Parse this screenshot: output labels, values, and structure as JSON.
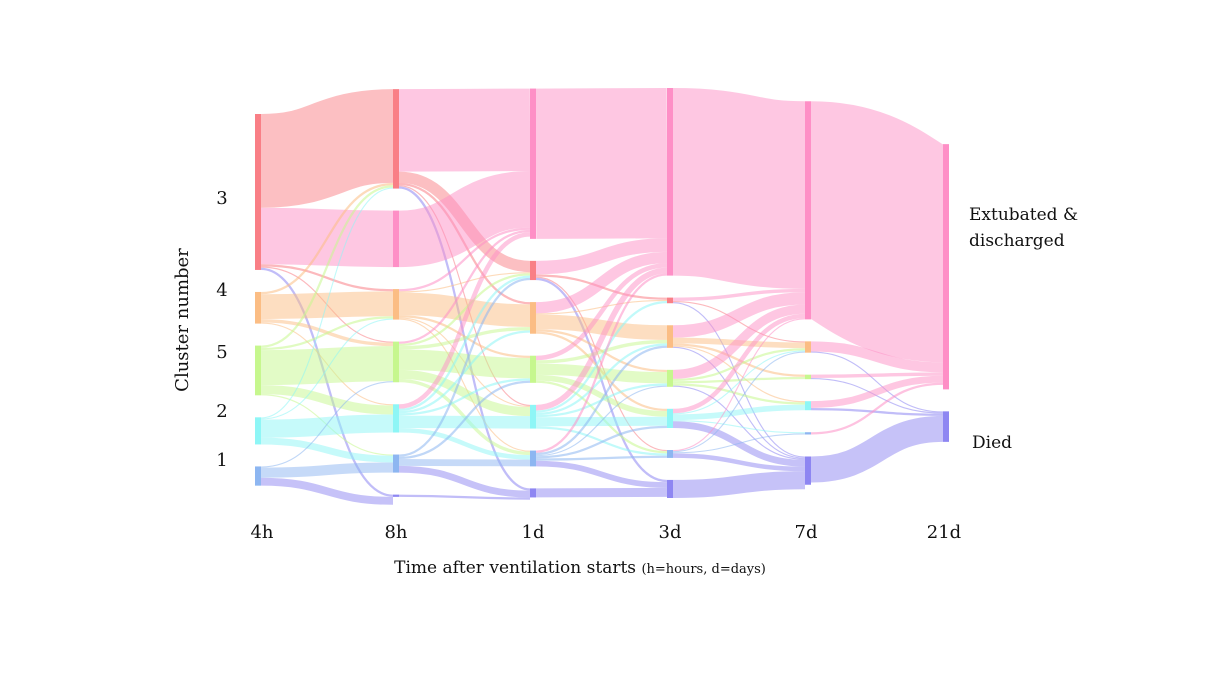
{
  "chart_data": {
    "type": "sankey",
    "xlabel_main": "Time after ventilation starts",
    "xlabel_note": "(h=hours, d=days)",
    "ylabel": "Cluster number",
    "time_points": [
      "4h",
      "8h",
      "1d",
      "3d",
      "7d",
      "21d"
    ],
    "cluster_labels": [
      "3",
      "4",
      "5",
      "2",
      "1"
    ],
    "outcomes": [
      {
        "line1": "Extubated &",
        "line2": "discharged"
      },
      {
        "line1": "Died",
        "line2": ""
      }
    ],
    "colors": {
      "c3": "#f97f86",
      "c4": "#fbbd84",
      "c5": "#c6f78e",
      "c2": "#8ef6f6",
      "c1": "#8db6f1",
      "discharged": "#fe8fc6",
      "died": "#8e86f2"
    },
    "nodes": [
      [
        {
          "id": "c3",
          "value": 138
        },
        {
          "id": "c4",
          "value": 28
        },
        {
          "id": "c5",
          "value": 44
        },
        {
          "id": "c2",
          "value": 24
        },
        {
          "id": "c1",
          "value": 17
        }
      ],
      [
        {
          "id": "c3",
          "value": 88
        },
        {
          "id": "discharged",
          "value": 50
        },
        {
          "id": "c4",
          "value": 27
        },
        {
          "id": "c5",
          "value": 36
        },
        {
          "id": "c2",
          "value": 25
        },
        {
          "id": "c1",
          "value": 16
        },
        {
          "id": "died",
          "value": 2
        }
      ],
      [
        {
          "id": "discharged",
          "value": 133
        },
        {
          "id": "c3",
          "value": 17
        },
        {
          "id": "c4",
          "value": 28
        },
        {
          "id": "c5",
          "value": 24
        },
        {
          "id": "c2",
          "value": 21
        },
        {
          "id": "c1",
          "value": 14
        },
        {
          "id": "died",
          "value": 8
        }
      ],
      [
        {
          "id": "discharged",
          "value": 166
        },
        {
          "id": "c3",
          "value": 5
        },
        {
          "id": "c4",
          "value": 20
        },
        {
          "id": "c5",
          "value": 15
        },
        {
          "id": "c2",
          "value": 17
        },
        {
          "id": "c1",
          "value": 7
        },
        {
          "id": "died",
          "value": 16
        }
      ],
      [
        {
          "id": "discharged",
          "value": 193
        },
        {
          "id": "c4",
          "value": 10
        },
        {
          "id": "c5",
          "value": 4
        },
        {
          "id": "c2",
          "value": 8
        },
        {
          "id": "c1",
          "value": 2
        },
        {
          "id": "died",
          "value": 25
        }
      ],
      [
        {
          "id": "discharged",
          "value": 217
        },
        {
          "id": "died",
          "value": 27
        }
      ]
    ],
    "links": [
      [
        {
          "s": "c3",
          "t": "c3",
          "v": 83
        },
        {
          "s": "c3",
          "t": "discharged",
          "v": 50
        },
        {
          "s": "c3",
          "t": "c4",
          "v": 2
        },
        {
          "s": "c3",
          "t": "c5",
          "v": 1
        },
        {
          "s": "c3",
          "t": "died",
          "v": 2
        },
        {
          "s": "c4",
          "t": "c3",
          "v": 2
        },
        {
          "s": "c4",
          "t": "c4",
          "v": 22
        },
        {
          "s": "c4",
          "t": "c5",
          "v": 3
        },
        {
          "s": "c4",
          "t": "c2",
          "v": 1
        },
        {
          "s": "c5",
          "t": "c3",
          "v": 2
        },
        {
          "s": "c5",
          "t": "c4",
          "v": 2
        },
        {
          "s": "c5",
          "t": "c5",
          "v": 31
        },
        {
          "s": "c5",
          "t": "c2",
          "v": 8
        },
        {
          "s": "c5",
          "t": "c1",
          "v": 1
        },
        {
          "s": "c2",
          "t": "c3",
          "v": 1
        },
        {
          "s": "c2",
          "t": "c4",
          "v": 1
        },
        {
          "s": "c2",
          "t": "c2",
          "v": 16
        },
        {
          "s": "c2",
          "t": "c1",
          "v": 6
        },
        {
          "s": "c1",
          "t": "c5",
          "v": 1
        },
        {
          "s": "c1",
          "t": "c1",
          "v": 9
        },
        {
          "s": "c1",
          "t": "died",
          "v": 7
        }
      ],
      [
        {
          "s": "c3",
          "t": "discharged",
          "v": 73
        },
        {
          "s": "c3",
          "t": "c3",
          "v": 10
        },
        {
          "s": "c3",
          "t": "c4",
          "v": 2
        },
        {
          "s": "c3",
          "t": "c2",
          "v": 1
        },
        {
          "s": "c3",
          "t": "died",
          "v": 2
        },
        {
          "s": "discharged",
          "t": "discharged",
          "v": 50
        },
        {
          "s": "c4",
          "t": "discharged",
          "v": 2
        },
        {
          "s": "c4",
          "t": "c3",
          "v": 1
        },
        {
          "s": "c4",
          "t": "c4",
          "v": 20
        },
        {
          "s": "c4",
          "t": "c5",
          "v": 2
        },
        {
          "s": "c4",
          "t": "c2",
          "v": 1
        },
        {
          "s": "c4",
          "t": "c1",
          "v": 1
        },
        {
          "s": "c5",
          "t": "discharged",
          "v": 2
        },
        {
          "s": "c5",
          "t": "c3",
          "v": 2
        },
        {
          "s": "c5",
          "t": "c4",
          "v": 3
        },
        {
          "s": "c5",
          "t": "c5",
          "v": 18
        },
        {
          "s": "c5",
          "t": "c2",
          "v": 8
        },
        {
          "s": "c5",
          "t": "c1",
          "v": 3
        },
        {
          "s": "c2",
          "t": "discharged",
          "v": 4
        },
        {
          "s": "c2",
          "t": "c3",
          "v": 2
        },
        {
          "s": "c2",
          "t": "c4",
          "v": 2
        },
        {
          "s": "c2",
          "t": "c5",
          "v": 2
        },
        {
          "s": "c2",
          "t": "c2",
          "v": 11
        },
        {
          "s": "c2",
          "t": "c1",
          "v": 4
        },
        {
          "s": "c1",
          "t": "c3",
          "v": 2
        },
        {
          "s": "c1",
          "t": "c5",
          "v": 2
        },
        {
          "s": "c1",
          "t": "c1",
          "v": 6
        },
        {
          "s": "c1",
          "t": "died",
          "v": 6
        },
        {
          "s": "died",
          "t": "died",
          "v": 2
        }
      ],
      [
        {
          "s": "discharged",
          "t": "discharged",
          "v": 133
        },
        {
          "s": "c3",
          "t": "discharged",
          "v": 12
        },
        {
          "s": "c3",
          "t": "c3",
          "v": 2
        },
        {
          "s": "c3",
          "t": "c1",
          "v": 1
        },
        {
          "s": "c3",
          "t": "died",
          "v": 2
        },
        {
          "s": "c4",
          "t": "discharged",
          "v": 10
        },
        {
          "s": "c4",
          "t": "c3",
          "v": 1
        },
        {
          "s": "c4",
          "t": "c4",
          "v": 13
        },
        {
          "s": "c4",
          "t": "c5",
          "v": 2
        },
        {
          "s": "c4",
          "t": "c2",
          "v": 2
        },
        {
          "s": "c5",
          "t": "discharged",
          "v": 4
        },
        {
          "s": "c5",
          "t": "c4",
          "v": 3
        },
        {
          "s": "c5",
          "t": "c5",
          "v": 10
        },
        {
          "s": "c5",
          "t": "c2",
          "v": 5
        },
        {
          "s": "c5",
          "t": "c1",
          "v": 2
        },
        {
          "s": "c2",
          "t": "discharged",
          "v": 5
        },
        {
          "s": "c2",
          "t": "c3",
          "v": 2
        },
        {
          "s": "c2",
          "t": "c4",
          "v": 2
        },
        {
          "s": "c2",
          "t": "c5",
          "v": 2
        },
        {
          "s": "c2",
          "t": "c2",
          "v": 8
        },
        {
          "s": "c2",
          "t": "c1",
          "v": 2
        },
        {
          "s": "c1",
          "t": "discharged",
          "v": 2
        },
        {
          "s": "c1",
          "t": "c4",
          "v": 2
        },
        {
          "s": "c1",
          "t": "c5",
          "v": 1
        },
        {
          "s": "c1",
          "t": "c2",
          "v": 2
        },
        {
          "s": "c1",
          "t": "c1",
          "v": 2
        },
        {
          "s": "c1",
          "t": "died",
          "v": 5
        },
        {
          "s": "died",
          "t": "died",
          "v": 8
        }
      ],
      [
        {
          "s": "discharged",
          "t": "discharged",
          "v": 166
        },
        {
          "s": "c3",
          "t": "discharged",
          "v": 3
        },
        {
          "s": "c3",
          "t": "c4",
          "v": 1
        },
        {
          "s": "c3",
          "t": "died",
          "v": 1
        },
        {
          "s": "c4",
          "t": "discharged",
          "v": 11
        },
        {
          "s": "c4",
          "t": "c4",
          "v": 5
        },
        {
          "s": "c4",
          "t": "c5",
          "v": 2
        },
        {
          "s": "c4",
          "t": "c2",
          "v": 1
        },
        {
          "s": "c4",
          "t": "died",
          "v": 1
        },
        {
          "s": "c5",
          "t": "discharged",
          "v": 8
        },
        {
          "s": "c5",
          "t": "c4",
          "v": 2
        },
        {
          "s": "c5",
          "t": "c5",
          "v": 2
        },
        {
          "s": "c5",
          "t": "c2",
          "v": 2
        },
        {
          "s": "c5",
          "t": "died",
          "v": 1
        },
        {
          "s": "c2",
          "t": "discharged",
          "v": 4
        },
        {
          "s": "c2",
          "t": "c4",
          "v": 1
        },
        {
          "s": "c2",
          "t": "c2",
          "v": 5
        },
        {
          "s": "c2",
          "t": "c1",
          "v": 1
        },
        {
          "s": "c2",
          "t": "died",
          "v": 6
        },
        {
          "s": "c1",
          "t": "discharged",
          "v": 1
        },
        {
          "s": "c1",
          "t": "c4",
          "v": 1
        },
        {
          "s": "c1",
          "t": "c1",
          "v": 1
        },
        {
          "s": "c1",
          "t": "died",
          "v": 4
        },
        {
          "s": "died",
          "t": "died",
          "v": 16
        }
      ],
      [
        {
          "s": "discharged",
          "t": "discharged",
          "v": 193
        },
        {
          "s": "c4",
          "t": "discharged",
          "v": 9
        },
        {
          "s": "c4",
          "t": "died",
          "v": 1
        },
        {
          "s": "c5",
          "t": "discharged",
          "v": 3
        },
        {
          "s": "c5",
          "t": "died",
          "v": 1
        },
        {
          "s": "c2",
          "t": "discharged",
          "v": 6
        },
        {
          "s": "c2",
          "t": "died",
          "v": 2
        },
        {
          "s": "c1",
          "t": "discharged",
          "v": 2
        },
        {
          "s": "died",
          "t": "died",
          "v": 23
        }
      ]
    ]
  }
}
